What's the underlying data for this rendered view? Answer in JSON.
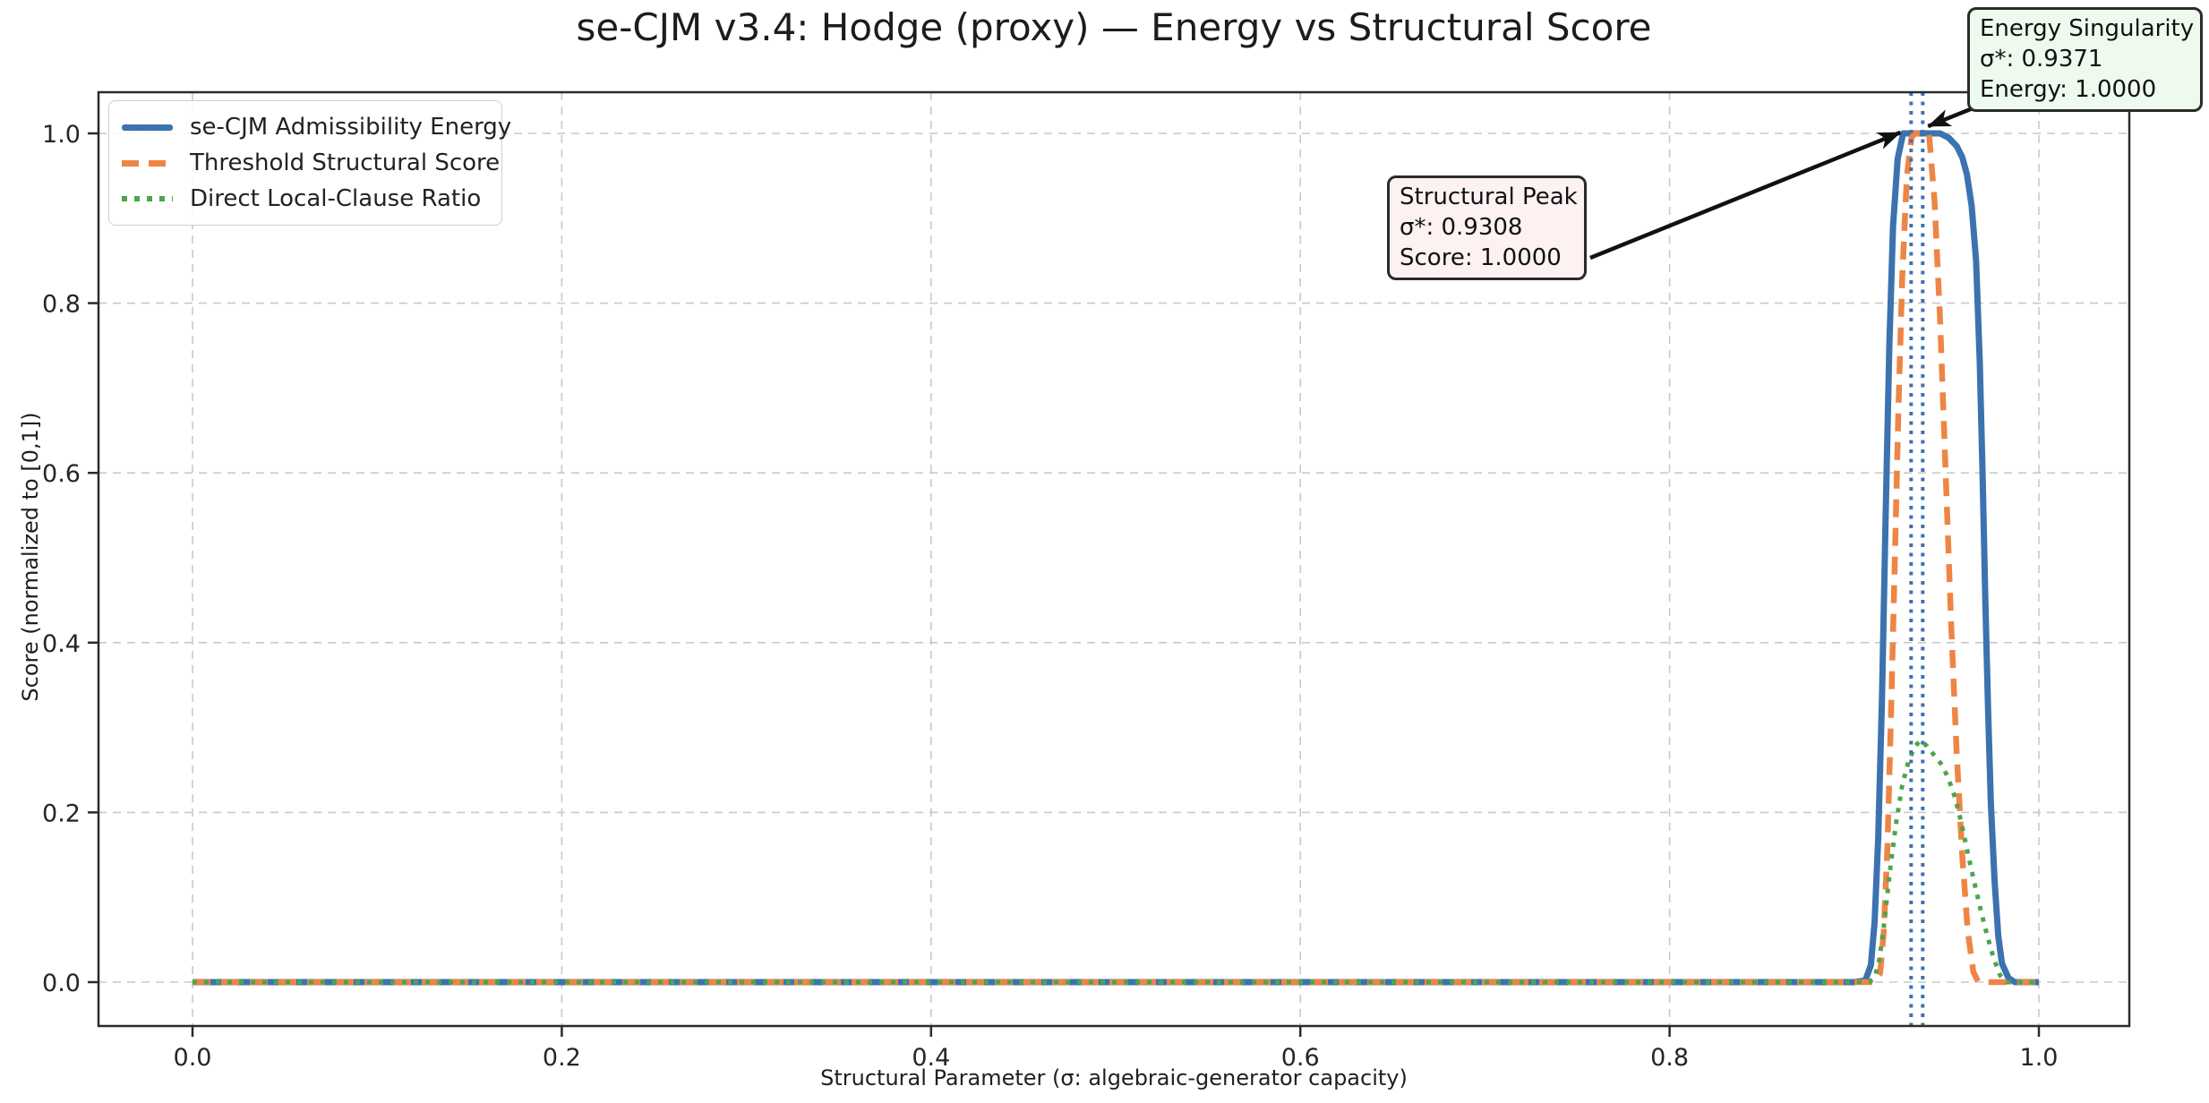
{
  "chart_data": {
    "type": "line",
    "title": "se-CJM v3.4: Hodge (proxy) — Energy vs Structural Score",
    "xlabel": "Structural Parameter (σ: algebraic-generator capacity)",
    "ylabel": "Score (normalized to [0,1])",
    "xlim": [
      -0.05,
      1.05
    ],
    "ylim": [
      -0.05,
      1.05
    ],
    "grid": true,
    "grid_style": "dashed",
    "legend_position": "upper left",
    "x_ticks": {
      "values": [
        0.0,
        0.2,
        0.4,
        0.6,
        0.8,
        1.0
      ],
      "labels": [
        "0.0",
        "0.2",
        "0.4",
        "0.6",
        "0.8",
        "1.0"
      ]
    },
    "y_ticks": {
      "values": [
        0.0,
        0.2,
        0.4,
        0.6,
        0.8,
        1.0
      ],
      "labels": [
        "0.0",
        "0.2",
        "0.4",
        "0.6",
        "0.8",
        "1.0"
      ]
    },
    "series": [
      {
        "name": "se-CJM Admissibility Energy",
        "color": "#3c72af",
        "style": "solid",
        "points": [
          [
            0,
            0
          ],
          [
            0.88,
            0
          ],
          [
            0.9,
            0
          ],
          [
            0.906,
            0.002
          ],
          [
            0.909,
            0.02
          ],
          [
            0.911,
            0.07
          ],
          [
            0.913,
            0.17
          ],
          [
            0.915,
            0.33
          ],
          [
            0.917,
            0.55
          ],
          [
            0.919,
            0.75
          ],
          [
            0.921,
            0.89
          ],
          [
            0.9235,
            0.97
          ],
          [
            0.9265,
            1.0
          ],
          [
            0.9465,
            1.0
          ],
          [
            0.951,
            0.995
          ],
          [
            0.9555,
            0.985
          ],
          [
            0.9585,
            0.972
          ],
          [
            0.961,
            0.952
          ],
          [
            0.9636,
            0.915
          ],
          [
            0.966,
            0.85
          ],
          [
            0.968,
            0.73
          ],
          [
            0.9695,
            0.6
          ],
          [
            0.971,
            0.45
          ],
          [
            0.9725,
            0.32
          ],
          [
            0.974,
            0.21
          ],
          [
            0.976,
            0.12
          ],
          [
            0.978,
            0.055
          ],
          [
            0.98,
            0.022
          ],
          [
            0.9835,
            0.005
          ],
          [
            0.987,
            0
          ],
          [
            1,
            0
          ]
        ]
      },
      {
        "name": "Threshold Structural Score",
        "color": "#ee8544",
        "style": "dashed",
        "points": [
          [
            0,
            0
          ],
          [
            0.9,
            0
          ],
          [
            0.911,
            0
          ],
          [
            0.914,
            0.01
          ],
          [
            0.916,
            0.06
          ],
          [
            0.918,
            0.16
          ],
          [
            0.92,
            0.32
          ],
          [
            0.922,
            0.5
          ],
          [
            0.924,
            0.68
          ],
          [
            0.926,
            0.83
          ],
          [
            0.9285,
            0.95
          ],
          [
            0.931,
            0.995
          ],
          [
            0.933,
            1.0
          ],
          [
            0.9405,
            1.0
          ],
          [
            0.9435,
            0.92
          ],
          [
            0.9465,
            0.78
          ],
          [
            0.9495,
            0.6
          ],
          [
            0.9525,
            0.42
          ],
          [
            0.9555,
            0.27
          ],
          [
            0.9585,
            0.15
          ],
          [
            0.9615,
            0.06
          ],
          [
            0.9645,
            0.012
          ],
          [
            0.967,
            0.001
          ],
          [
            0.97,
            0
          ],
          [
            1,
            0
          ]
        ]
      },
      {
        "name": "Direct Local-Clause Ratio",
        "color": "#4ca64c",
        "style": "dotted",
        "points": [
          [
            0,
            0
          ],
          [
            0.9,
            0
          ],
          [
            0.908,
            0
          ],
          [
            0.911,
            0.005
          ],
          [
            0.9135,
            0.025
          ],
          [
            0.916,
            0.065
          ],
          [
            0.919,
            0.125
          ],
          [
            0.9225,
            0.185
          ],
          [
            0.926,
            0.232
          ],
          [
            0.9295,
            0.261
          ],
          [
            0.933,
            0.278
          ],
          [
            0.936,
            0.285
          ],
          [
            0.9395,
            0.278
          ],
          [
            0.943,
            0.268
          ],
          [
            0.9475,
            0.256
          ],
          [
            0.951,
            0.24
          ],
          [
            0.9545,
            0.218
          ],
          [
            0.958,
            0.188
          ],
          [
            0.9615,
            0.152
          ],
          [
            0.965,
            0.118
          ],
          [
            0.9685,
            0.085
          ],
          [
            0.972,
            0.055
          ],
          [
            0.9755,
            0.028
          ],
          [
            0.979,
            0.008
          ],
          [
            0.9825,
            0
          ],
          [
            1,
            0
          ]
        ]
      }
    ],
    "vlines": [
      {
        "sigma": 0.9308,
        "color": "#3c72af",
        "style": "dotted"
      },
      {
        "sigma": 0.9371,
        "color": "#3c72af",
        "style": "dotted"
      }
    ],
    "annotations": [
      {
        "id": "structural_peak",
        "lines": [
          "Structural Peak",
          "σ*: 0.9308",
          "Score: 1.0000"
        ],
        "target_sigma": 0.9308,
        "target_value": 1.0,
        "box_color": "#fdf1f2"
      },
      {
        "id": "energy_singularity",
        "lines": [
          "Energy Singularity",
          "σ*: 0.9371",
          "Energy: 1.0000"
        ],
        "target_sigma": 0.9371,
        "target_value": 1.0,
        "box_color": "#eefaee"
      }
    ]
  }
}
